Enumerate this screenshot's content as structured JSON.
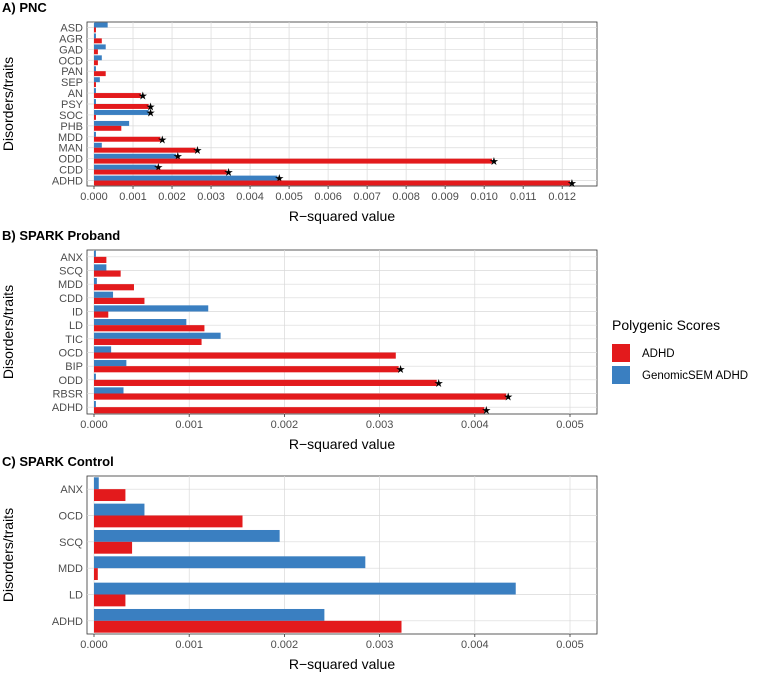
{
  "colors": {
    "adhd": "#e31a1c",
    "genomicsem": "#3a7fc1",
    "grid": "#d9d9d9",
    "frame": "#333333"
  },
  "legend": {
    "title": "Polygenic Scores",
    "items": [
      {
        "label": "ADHD",
        "color": "#e31a1c"
      },
      {
        "label": "GenomicSEM ADHD",
        "color": "#3a7fc1"
      }
    ]
  },
  "chart_data": [
    {
      "type": "bar",
      "orientation": "horizontal",
      "title": "A) PNC",
      "xlabel": "R−squared value",
      "ylabel": "Disorders/traits",
      "xlim": [
        0,
        0.0122
      ],
      "xticks": [
        "0.000",
        "0.001",
        "0.002",
        "0.003",
        "0.004",
        "0.005",
        "0.006",
        "0.007",
        "0.008",
        "0.009",
        "0.010",
        "0.011",
        "0.012"
      ],
      "categories": [
        "ASD",
        "AGR",
        "GAD",
        "OCD",
        "PAN",
        "SEP",
        "AN",
        "PSY",
        "SOC",
        "PHB",
        "MDD",
        "MAN",
        "ODD",
        "CDD",
        "ADHD"
      ],
      "series": [
        {
          "name": "GenomicSEM ADHD",
          "values": [
            0.00035,
            5e-05,
            0.0003,
            0.0002,
            5e-05,
            0.00015,
            5e-05,
            5e-05,
            0.0014,
            0.0009,
            5e-05,
            0.0002,
            0.0021,
            0.0016,
            0.0047
          ],
          "significant": [
            false,
            false,
            false,
            false,
            false,
            false,
            false,
            false,
            true,
            false,
            false,
            false,
            true,
            true,
            true
          ]
        },
        {
          "name": "ADHD",
          "values": [
            5e-05,
            0.0002,
            0.0001,
            0.0001,
            0.0003,
            5e-05,
            0.0012,
            0.0014,
            5e-05,
            0.0007,
            0.0017,
            0.0026,
            0.0102,
            0.0034,
            0.0122
          ],
          "significant": [
            false,
            false,
            false,
            false,
            false,
            false,
            true,
            true,
            false,
            false,
            true,
            true,
            true,
            true,
            true
          ]
        }
      ]
    },
    {
      "type": "bar",
      "orientation": "horizontal",
      "title": "B) SPARK Proband",
      "xlabel": "R−squared value",
      "ylabel": "Disorders/traits",
      "xlim": [
        0,
        0.005
      ],
      "xticks": [
        "0.000",
        "0.001",
        "0.002",
        "0.003",
        "0.004",
        "0.005"
      ],
      "categories": [
        "ANX",
        "SCQ",
        "MDD",
        "CDD",
        "ID",
        "LD",
        "TIC",
        "OCD",
        "BIP",
        "ODD",
        "RBSR",
        "ADHD"
      ],
      "series": [
        {
          "name": "GenomicSEM ADHD",
          "values": [
            2e-05,
            0.00013,
            3e-05,
            0.0002,
            0.0012,
            0.00097,
            0.00133,
            0.00018,
            0.00034,
            2e-05,
            0.00031,
            2e-05
          ],
          "significant": [
            false,
            false,
            false,
            false,
            false,
            false,
            false,
            false,
            false,
            false,
            false,
            false
          ]
        },
        {
          "name": "ADHD",
          "values": [
            0.00013,
            0.00028,
            0.00042,
            0.00053,
            0.00015,
            0.00116,
            0.00113,
            0.00317,
            0.0032,
            0.0036,
            0.00433,
            0.0041
          ],
          "significant": [
            false,
            false,
            false,
            false,
            false,
            false,
            false,
            false,
            true,
            true,
            true,
            true
          ]
        }
      ]
    },
    {
      "type": "bar",
      "orientation": "horizontal",
      "title": "C) SPARK Control",
      "xlabel": "R−squared value",
      "ylabel": "Disorders/traits",
      "xlim": [
        0,
        0.005
      ],
      "xticks": [
        "0.000",
        "0.001",
        "0.002",
        "0.003",
        "0.004",
        "0.005"
      ],
      "categories": [
        "ANX",
        "OCD",
        "SCQ",
        "MDD",
        "LD",
        "ADHD"
      ],
      "series": [
        {
          "name": "GenomicSEM ADHD",
          "values": [
            5e-05,
            0.00053,
            0.00195,
            0.00285,
            0.00443,
            0.00242
          ],
          "significant": [
            false,
            false,
            false,
            false,
            false,
            false
          ]
        },
        {
          "name": "ADHD",
          "values": [
            0.00033,
            0.00156,
            0.0004,
            4e-05,
            0.00033,
            0.00323
          ],
          "significant": [
            false,
            false,
            false,
            false,
            false,
            false
          ]
        }
      ]
    }
  ]
}
